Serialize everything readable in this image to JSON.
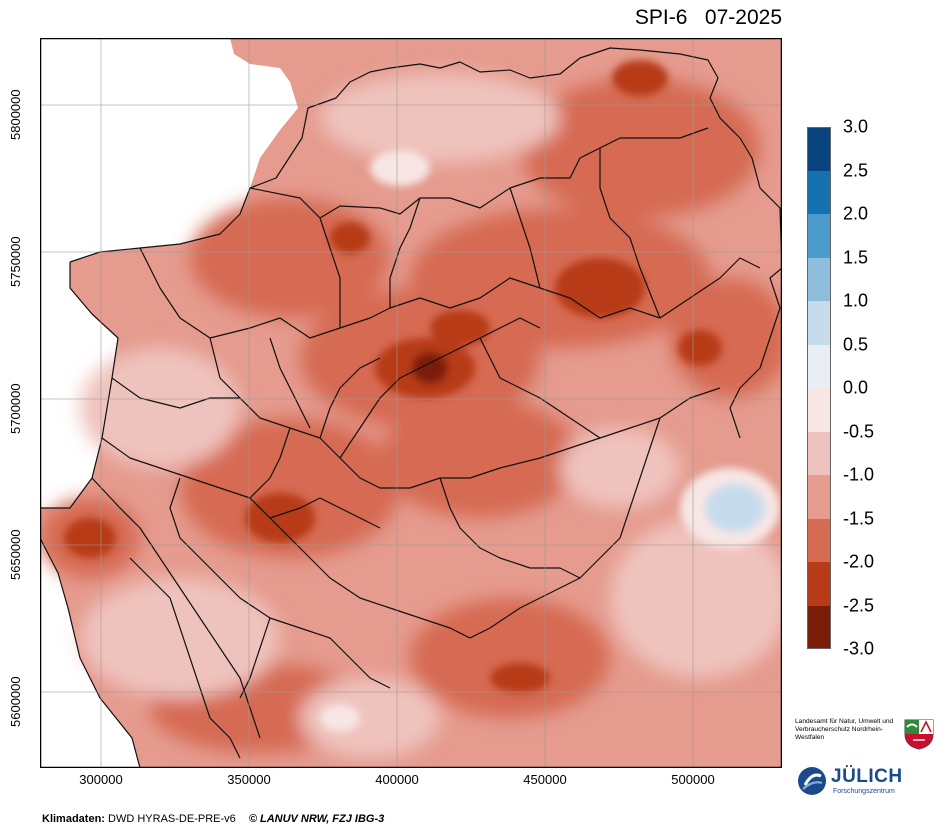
{
  "title": "SPI-6   07-2025",
  "map": {
    "y_axis_ticks": [
      "5800000",
      "5750000",
      "5700000",
      "5650000",
      "5600000"
    ],
    "x_axis_ticks": [
      "300000",
      "350000",
      "400000",
      "450000",
      "500000"
    ],
    "region": "Nordrhein-Westfalen"
  },
  "legend": {
    "labels": [
      "3.0",
      "2.5",
      "2.0",
      "1.5",
      "1.0",
      "0.5",
      "0.0",
      "-0.5",
      "-1.0",
      "-1.5",
      "-2.0",
      "-2.5",
      "-3.0"
    ],
    "colors": [
      "#08457e",
      "#1572b0",
      "#4b9bcc",
      "#8fbedd",
      "#c6dcec",
      "#e8eef4",
      "#f7e6e4",
      "#efc3bd",
      "#e59b8e",
      "#d66a52",
      "#b73b19",
      "#7a1c08"
    ]
  },
  "footer": {
    "source_label": "Klimadaten:",
    "source_value": "DWD HYRAS-DE-PRE-v6",
    "copyright": "© LANUV NRW, FZJ IBG-3"
  },
  "logos": {
    "lanuv_text": "Landesamt für Natur, Umwelt und Verbraucherschutz Nordrhein-Westfalen",
    "juelich_name": "JÜLICH",
    "juelich_sub": "Forschungszentrum"
  }
}
